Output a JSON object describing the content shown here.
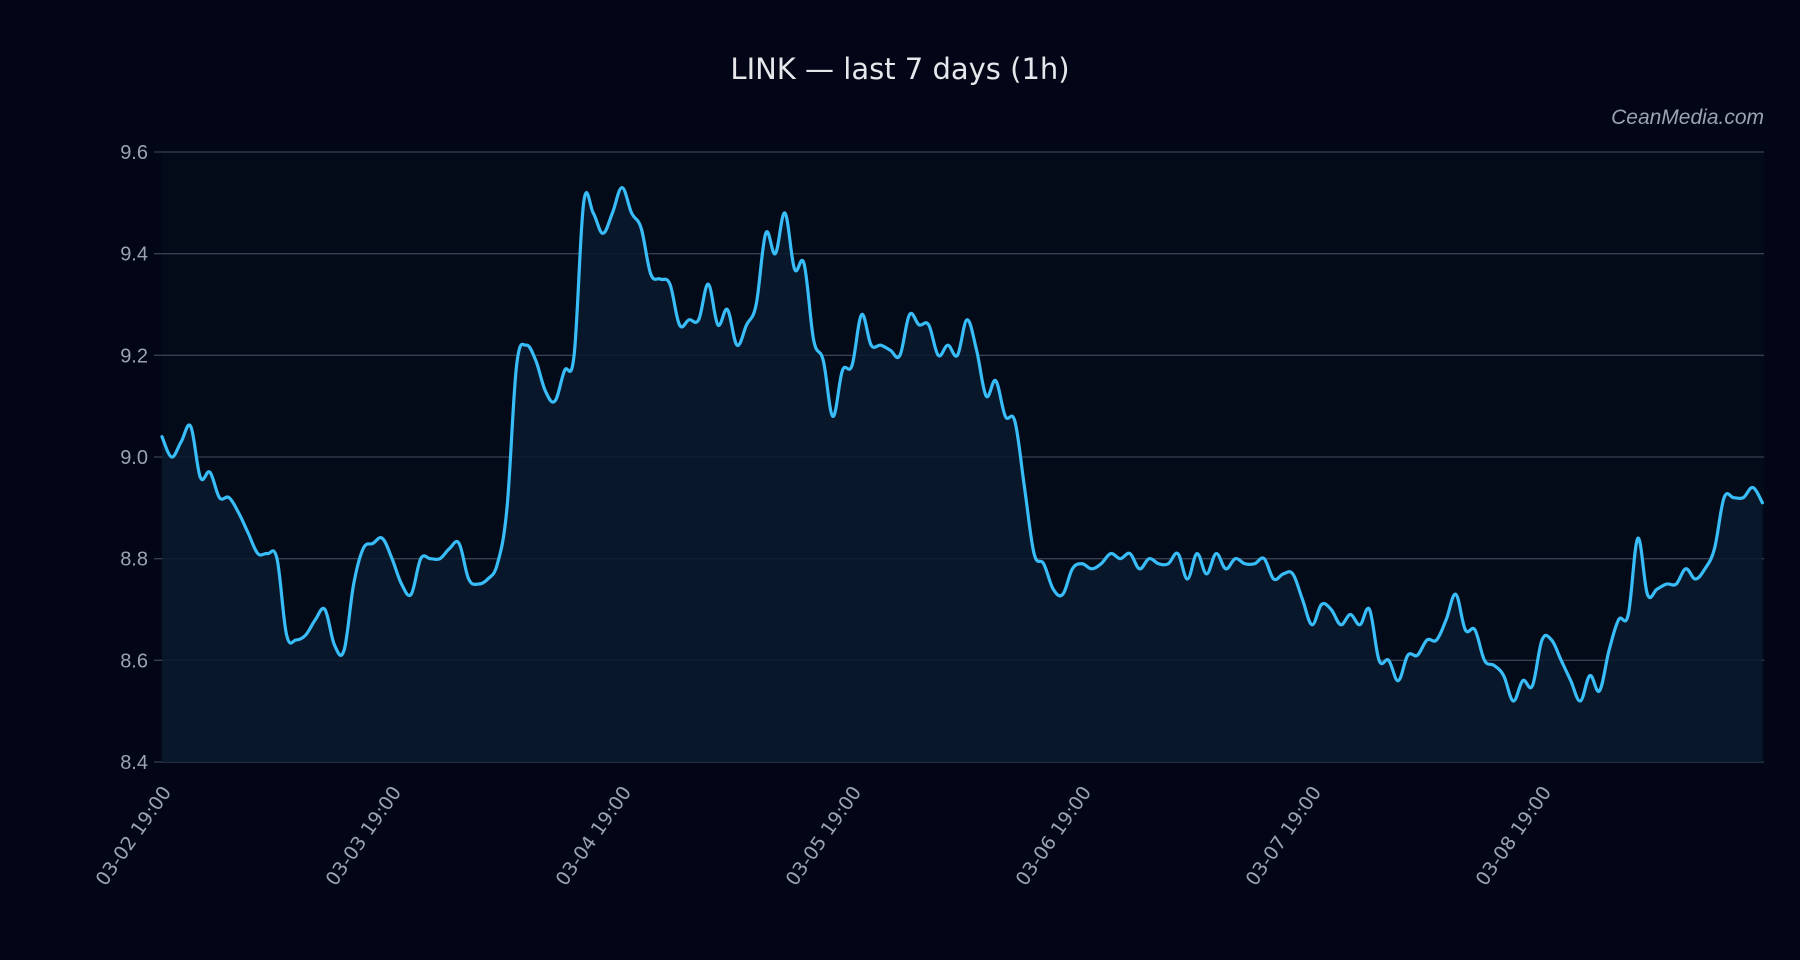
{
  "chart_data": {
    "type": "area",
    "title": "LINK — last 7 days (1h)",
    "watermark": "CeanMedia.com",
    "xlabel": "",
    "ylabel": "",
    "ylim": [
      8.4,
      9.6
    ],
    "yticks": [
      8.4,
      8.6,
      8.8,
      9.0,
      9.2,
      9.4,
      9.6
    ],
    "ytick_labels": [
      "8.4",
      "8.6",
      "8.8",
      "9.0",
      "9.2",
      "9.4",
      "9.6"
    ],
    "xtick_labels": [
      "03-02 19:00",
      "03-03 19:00",
      "03-04 19:00",
      "03-05 19:00",
      "03-06 19:00",
      "03-07 19:00",
      "03-08 19:00"
    ],
    "xtick_index": [
      0,
      24,
      48,
      72,
      96,
      120,
      144
    ],
    "grid": true,
    "legend": "none",
    "series": [
      {
        "name": "LINK",
        "color": "#38bdf8",
        "fill": "#0b1a2e",
        "interval": "1h",
        "start": "03-02 19:00",
        "values": [
          9.04,
          9.0,
          9.03,
          9.06,
          8.96,
          8.97,
          8.92,
          8.92,
          8.89,
          8.85,
          8.81,
          8.81,
          8.8,
          8.65,
          8.64,
          8.65,
          8.68,
          8.7,
          8.63,
          8.62,
          8.75,
          8.82,
          8.83,
          8.84,
          8.8,
          8.75,
          8.73,
          8.8,
          8.8,
          8.8,
          8.82,
          8.83,
          8.76,
          8.75,
          8.76,
          8.79,
          8.9,
          9.18,
          9.22,
          9.19,
          9.13,
          9.11,
          9.17,
          9.2,
          9.5,
          9.48,
          9.44,
          9.48,
          9.53,
          9.48,
          9.45,
          9.36,
          9.35,
          9.34,
          9.26,
          9.27,
          9.27,
          9.34,
          9.26,
          9.29,
          9.22,
          9.26,
          9.3,
          9.44,
          9.4,
          9.48,
          9.37,
          9.38,
          9.23,
          9.19,
          9.08,
          9.17,
          9.18,
          9.28,
          9.22,
          9.22,
          9.21,
          9.2,
          9.28,
          9.26,
          9.26,
          9.2,
          9.22,
          9.2,
          9.27,
          9.21,
          9.12,
          9.15,
          9.08,
          9.07,
          8.94,
          8.81,
          8.79,
          8.74,
          8.73,
          8.78,
          8.79,
          8.78,
          8.79,
          8.81,
          8.8,
          8.81,
          8.78,
          8.8,
          8.79,
          8.79,
          8.81,
          8.76,
          8.81,
          8.77,
          8.81,
          8.78,
          8.8,
          8.79,
          8.79,
          8.8,
          8.76,
          8.77,
          8.77,
          8.72,
          8.67,
          8.71,
          8.7,
          8.67,
          8.69,
          8.67,
          8.7,
          8.6,
          8.6,
          8.56,
          8.61,
          8.61,
          8.64,
          8.64,
          8.68,
          8.73,
          8.66,
          8.66,
          8.6,
          8.59,
          8.57,
          8.52,
          8.56,
          8.55,
          8.64,
          8.64,
          8.6,
          8.56,
          8.52,
          8.57,
          8.54,
          8.62,
          8.68,
          8.69,
          8.84,
          8.73,
          8.74,
          8.75,
          8.75,
          8.78,
          8.76,
          8.78,
          8.82,
          8.92,
          8.92,
          8.92,
          8.94,
          8.91
        ]
      }
    ]
  },
  "colors": {
    "background": "#020617",
    "grid": "#374151",
    "axis_text": "#9ca3af",
    "title_text": "#e5e7eb",
    "line": "#38bdf8",
    "area_fill": "#0b1a2e"
  }
}
